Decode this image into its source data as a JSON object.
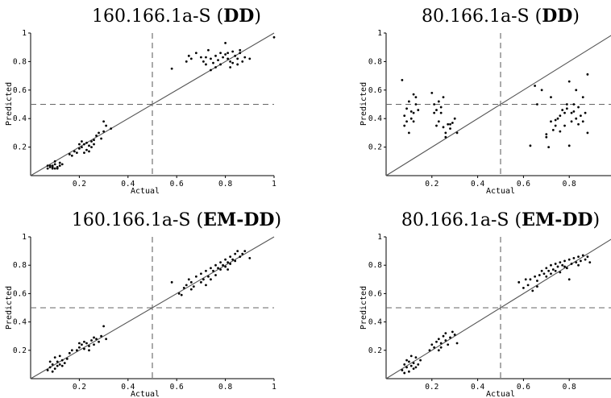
{
  "chart_data": [
    {
      "type": "scatter",
      "title": "160.166.1a-S (DD)",
      "title_main": "160.166.1a-S (",
      "title_bold": "DD",
      "title_close": ")",
      "xlabel": "Actual",
      "ylabel": "Predicted",
      "xlim": [
        0,
        1
      ],
      "ylim": [
        0,
        1
      ],
      "x_ticks": [
        "0.2",
        "0.4",
        "0.6",
        "0.8",
        "1"
      ],
      "y_ticks": [
        "0.2",
        "0.4",
        "0.6",
        "0.8",
        "1"
      ],
      "reference_lines": [
        "y = x",
        "x = 0.5 (dashed)",
        "y = 0.5 (dashed)"
      ],
      "points": [
        [
          0.07,
          0.05
        ],
        [
          0.08,
          0.06
        ],
        [
          0.09,
          0.07
        ],
        [
          0.1,
          0.05
        ],
        [
          0.11,
          0.06
        ],
        [
          0.12,
          0.07
        ],
        [
          0.1,
          0.08
        ],
        [
          0.09,
          0.05
        ],
        [
          0.13,
          0.08
        ],
        [
          0.08,
          0.07
        ],
        [
          0.11,
          0.05
        ],
        [
          0.12,
          0.09
        ],
        [
          0.1,
          0.1
        ],
        [
          0.09,
          0.06
        ],
        [
          0.07,
          0.07
        ],
        [
          0.17,
          0.14
        ],
        [
          0.18,
          0.17
        ],
        [
          0.2,
          0.19
        ],
        [
          0.21,
          0.2
        ],
        [
          0.22,
          0.22
        ],
        [
          0.23,
          0.18
        ],
        [
          0.24,
          0.21
        ],
        [
          0.25,
          0.24
        ],
        [
          0.26,
          0.25
        ],
        [
          0.23,
          0.23
        ],
        [
          0.22,
          0.16
        ],
        [
          0.21,
          0.24
        ],
        [
          0.25,
          0.2
        ],
        [
          0.27,
          0.28
        ],
        [
          0.28,
          0.3
        ],
        [
          0.3,
          0.31
        ],
        [
          0.29,
          0.26
        ],
        [
          0.31,
          0.35
        ],
        [
          0.33,
          0.33
        ],
        [
          0.3,
          0.38
        ],
        [
          0.19,
          0.16
        ],
        [
          0.2,
          0.22
        ],
        [
          0.24,
          0.17
        ],
        [
          0.26,
          0.22
        ],
        [
          0.16,
          0.15
        ],
        [
          0.58,
          0.75
        ],
        [
          0.64,
          0.8
        ],
        [
          0.65,
          0.84
        ],
        [
          0.66,
          0.82
        ],
        [
          0.68,
          0.86
        ],
        [
          0.7,
          0.83
        ],
        [
          0.71,
          0.8
        ],
        [
          0.72,
          0.78
        ],
        [
          0.73,
          0.88
        ],
        [
          0.74,
          0.82
        ],
        [
          0.75,
          0.79
        ],
        [
          0.76,
          0.84
        ],
        [
          0.77,
          0.81
        ],
        [
          0.78,
          0.86
        ],
        [
          0.79,
          0.83
        ],
        [
          0.8,
          0.85
        ],
        [
          0.81,
          0.82
        ],
        [
          0.82,
          0.8
        ],
        [
          0.83,
          0.87
        ],
        [
          0.84,
          0.84
        ],
        [
          0.85,
          0.82
        ],
        [
          0.86,
          0.86
        ],
        [
          0.87,
          0.8
        ],
        [
          0.88,
          0.83
        ],
        [
          0.9,
          0.82
        ],
        [
          0.8,
          0.93
        ],
        [
          0.82,
          0.76
        ],
        [
          0.76,
          0.76
        ],
        [
          0.78,
          0.78
        ],
        [
          0.72,
          0.83
        ],
        [
          0.74,
          0.74
        ],
        [
          0.83,
          0.79
        ],
        [
          0.85,
          0.78
        ],
        [
          0.86,
          0.88
        ],
        [
          0.81,
          0.86
        ],
        [
          1.0,
          0.97
        ]
      ]
    },
    {
      "type": "scatter",
      "title": "80.166.1a-S (DD)",
      "title_main": "80.166.1a-S (",
      "title_bold": "DD",
      "title_close": ")",
      "xlabel": "Actual",
      "ylabel": "Predicted",
      "xlim": [
        0,
        1
      ],
      "ylim": [
        0,
        1
      ],
      "x_ticks": [
        "0.2",
        "0.4",
        "0.6",
        "0.8"
      ],
      "y_ticks": [
        "0.2",
        "0.4",
        "0.6",
        "0.8",
        "1"
      ],
      "reference_lines": [
        "y = x",
        "x = 0.5 (dashed)",
        "y = 0.5 (dashed)"
      ],
      "points": [
        [
          0.07,
          0.67
        ],
        [
          0.08,
          0.42
        ],
        [
          0.09,
          0.47
        ],
        [
          0.1,
          0.3
        ],
        [
          0.1,
          0.52
        ],
        [
          0.11,
          0.45
        ],
        [
          0.12,
          0.57
        ],
        [
          0.12,
          0.38
        ],
        [
          0.13,
          0.5
        ],
        [
          0.14,
          0.46
        ],
        [
          0.09,
          0.38
        ],
        [
          0.11,
          0.4
        ],
        [
          0.13,
          0.55
        ],
        [
          0.08,
          0.35
        ],
        [
          0.12,
          0.44
        ],
        [
          0.2,
          0.58
        ],
        [
          0.21,
          0.5
        ],
        [
          0.22,
          0.46
        ],
        [
          0.23,
          0.38
        ],
        [
          0.24,
          0.44
        ],
        [
          0.25,
          0.55
        ],
        [
          0.26,
          0.3
        ],
        [
          0.27,
          0.36
        ],
        [
          0.28,
          0.33
        ],
        [
          0.29,
          0.37
        ],
        [
          0.3,
          0.4
        ],
        [
          0.25,
          0.34
        ],
        [
          0.22,
          0.35
        ],
        [
          0.24,
          0.48
        ],
        [
          0.23,
          0.52
        ],
        [
          0.31,
          0.3
        ],
        [
          0.26,
          0.27
        ],
        [
          0.28,
          0.36
        ],
        [
          0.21,
          0.44
        ],
        [
          0.63,
          0.21
        ],
        [
          0.65,
          0.63
        ],
        [
          0.66,
          0.5
        ],
        [
          0.68,
          0.6
        ],
        [
          0.7,
          0.29
        ],
        [
          0.71,
          0.2
        ],
        [
          0.72,
          0.38
        ],
        [
          0.73,
          0.32
        ],
        [
          0.74,
          0.35
        ],
        [
          0.75,
          0.4
        ],
        [
          0.76,
          0.42
        ],
        [
          0.77,
          0.46
        ],
        [
          0.78,
          0.44
        ],
        [
          0.79,
          0.5
        ],
        [
          0.8,
          0.66
        ],
        [
          0.81,
          0.38
        ],
        [
          0.82,
          0.45
        ],
        [
          0.83,
          0.4
        ],
        [
          0.84,
          0.48
        ],
        [
          0.85,
          0.42
        ],
        [
          0.86,
          0.38
        ],
        [
          0.87,
          0.44
        ],
        [
          0.88,
          0.3
        ],
        [
          0.88,
          0.71
        ],
        [
          0.76,
          0.31
        ],
        [
          0.8,
          0.21
        ],
        [
          0.72,
          0.55
        ],
        [
          0.78,
          0.35
        ],
        [
          0.82,
          0.5
        ],
        [
          0.84,
          0.36
        ],
        [
          0.86,
          0.55
        ],
        [
          0.83,
          0.6
        ],
        [
          0.79,
          0.47
        ],
        [
          0.81,
          0.44
        ],
        [
          0.7,
          0.27
        ],
        [
          0.74,
          0.39
        ]
      ]
    },
    {
      "type": "scatter",
      "title": "160.166.1a-S (EM-DD)",
      "title_main": "160.166.1a-S (",
      "title_bold": "EM-DD",
      "title_close": ")",
      "xlabel": "Actual",
      "ylabel": "Predicted",
      "xlim": [
        0,
        1
      ],
      "ylim": [
        0,
        1
      ],
      "x_ticks": [
        "0.2",
        "0.4",
        "0.6",
        "0.8",
        "1"
      ],
      "y_ticks": [
        "0.2",
        "0.4",
        "0.6",
        "0.8",
        "1"
      ],
      "reference_lines": [
        "y = x",
        "x = 0.5 (dashed)",
        "y = 0.5 (dashed)"
      ],
      "points": [
        [
          0.07,
          0.06
        ],
        [
          0.08,
          0.08
        ],
        [
          0.09,
          0.1
        ],
        [
          0.1,
          0.07
        ],
        [
          0.11,
          0.12
        ],
        [
          0.12,
          0.1
        ],
        [
          0.13,
          0.13
        ],
        [
          0.14,
          0.11
        ],
        [
          0.1,
          0.15
        ],
        [
          0.09,
          0.05
        ],
        [
          0.12,
          0.16
        ],
        [
          0.11,
          0.09
        ],
        [
          0.15,
          0.14
        ],
        [
          0.08,
          0.12
        ],
        [
          0.13,
          0.09
        ],
        [
          0.16,
          0.18
        ],
        [
          0.17,
          0.2
        ],
        [
          0.19,
          0.2
        ],
        [
          0.2,
          0.22
        ],
        [
          0.21,
          0.24
        ],
        [
          0.22,
          0.21
        ],
        [
          0.23,
          0.25
        ],
        [
          0.24,
          0.23
        ],
        [
          0.25,
          0.27
        ],
        [
          0.26,
          0.24
        ],
        [
          0.27,
          0.28
        ],
        [
          0.28,
          0.26
        ],
        [
          0.29,
          0.3
        ],
        [
          0.3,
          0.37
        ],
        [
          0.22,
          0.26
        ],
        [
          0.24,
          0.2
        ],
        [
          0.26,
          0.29
        ],
        [
          0.2,
          0.25
        ],
        [
          0.31,
          0.28
        ],
        [
          0.58,
          0.68
        ],
        [
          0.61,
          0.6
        ],
        [
          0.63,
          0.64
        ],
        [
          0.64,
          0.66
        ],
        [
          0.65,
          0.7
        ],
        [
          0.66,
          0.68
        ],
        [
          0.67,
          0.65
        ],
        [
          0.68,
          0.72
        ],
        [
          0.7,
          0.74
        ],
        [
          0.71,
          0.7
        ],
        [
          0.72,
          0.76
        ],
        [
          0.73,
          0.72
        ],
        [
          0.74,
          0.78
        ],
        [
          0.75,
          0.76
        ],
        [
          0.76,
          0.8
        ],
        [
          0.77,
          0.78
        ],
        [
          0.78,
          0.82
        ],
        [
          0.79,
          0.8
        ],
        [
          0.8,
          0.84
        ],
        [
          0.81,
          0.82
        ],
        [
          0.82,
          0.86
        ],
        [
          0.83,
          0.84
        ],
        [
          0.84,
          0.88
        ],
        [
          0.85,
          0.9
        ],
        [
          0.86,
          0.86
        ],
        [
          0.87,
          0.88
        ],
        [
          0.8,
          0.79
        ],
        [
          0.82,
          0.81
        ],
        [
          0.78,
          0.77
        ],
        [
          0.84,
          0.83
        ],
        [
          0.7,
          0.68
        ],
        [
          0.66,
          0.63
        ],
        [
          0.62,
          0.59
        ],
        [
          0.74,
          0.7
        ],
        [
          0.76,
          0.73
        ],
        [
          0.9,
          0.85
        ],
        [
          0.72,
          0.66
        ],
        [
          0.88,
          0.9
        ],
        [
          0.81,
          0.77
        ]
      ]
    },
    {
      "type": "scatter",
      "title": "80.166.1a-S (EM-DD)",
      "title_main": "80.166.1a-S (",
      "title_bold": "EM-DD",
      "title_close": ")",
      "xlabel": "Actual",
      "ylabel": "Predicted",
      "xlim": [
        0,
        1
      ],
      "ylim": [
        0,
        1
      ],
      "x_ticks": [
        "0.2",
        "0.4",
        "0.6",
        "0.8"
      ],
      "y_ticks": [
        "0.2",
        "0.4",
        "0.6",
        "0.8",
        "1"
      ],
      "reference_lines": [
        "y = x",
        "x = 0.5 (dashed)",
        "y = 0.5 (dashed)"
      ],
      "points": [
        [
          0.07,
          0.06
        ],
        [
          0.08,
          0.1
        ],
        [
          0.09,
          0.08
        ],
        [
          0.1,
          0.12
        ],
        [
          0.11,
          0.09
        ],
        [
          0.12,
          0.11
        ],
        [
          0.13,
          0.15
        ],
        [
          0.14,
          0.1
        ],
        [
          0.1,
          0.05
        ],
        [
          0.09,
          0.13
        ],
        [
          0.12,
          0.07
        ],
        [
          0.11,
          0.16
        ],
        [
          0.13,
          0.08
        ],
        [
          0.15,
          0.13
        ],
        [
          0.08,
          0.04
        ],
        [
          0.19,
          0.2
        ],
        [
          0.2,
          0.24
        ],
        [
          0.21,
          0.22
        ],
        [
          0.22,
          0.26
        ],
        [
          0.23,
          0.28
        ],
        [
          0.24,
          0.25
        ],
        [
          0.25,
          0.3
        ],
        [
          0.26,
          0.27
        ],
        [
          0.27,
          0.24
        ],
        [
          0.28,
          0.29
        ],
        [
          0.29,
          0.33
        ],
        [
          0.3,
          0.31
        ],
        [
          0.31,
          0.25
        ],
        [
          0.23,
          0.2
        ],
        [
          0.26,
          0.32
        ],
        [
          0.24,
          0.22
        ],
        [
          0.58,
          0.68
        ],
        [
          0.6,
          0.64
        ],
        [
          0.61,
          0.7
        ],
        [
          0.62,
          0.66
        ],
        [
          0.63,
          0.7
        ],
        [
          0.64,
          0.62
        ],
        [
          0.65,
          0.72
        ],
        [
          0.66,
          0.69
        ],
        [
          0.67,
          0.73
        ],
        [
          0.68,
          0.76
        ],
        [
          0.69,
          0.74
        ],
        [
          0.7,
          0.78
        ],
        [
          0.71,
          0.76
        ],
        [
          0.72,
          0.8
        ],
        [
          0.73,
          0.77
        ],
        [
          0.74,
          0.81
        ],
        [
          0.75,
          0.79
        ],
        [
          0.76,
          0.82
        ],
        [
          0.77,
          0.8
        ],
        [
          0.78,
          0.83
        ],
        [
          0.79,
          0.78
        ],
        [
          0.8,
          0.84
        ],
        [
          0.81,
          0.81
        ],
        [
          0.82,
          0.85
        ],
        [
          0.83,
          0.82
        ],
        [
          0.84,
          0.86
        ],
        [
          0.85,
          0.83
        ],
        [
          0.86,
          0.87
        ],
        [
          0.87,
          0.84
        ],
        [
          0.88,
          0.86
        ],
        [
          0.89,
          0.82
        ],
        [
          0.8,
          0.7
        ],
        [
          0.72,
          0.74
        ],
        [
          0.76,
          0.75
        ],
        [
          0.66,
          0.65
        ],
        [
          0.78,
          0.79
        ],
        [
          0.84,
          0.8
        ],
        [
          0.7,
          0.72
        ],
        [
          0.74,
          0.76
        ]
      ]
    }
  ]
}
